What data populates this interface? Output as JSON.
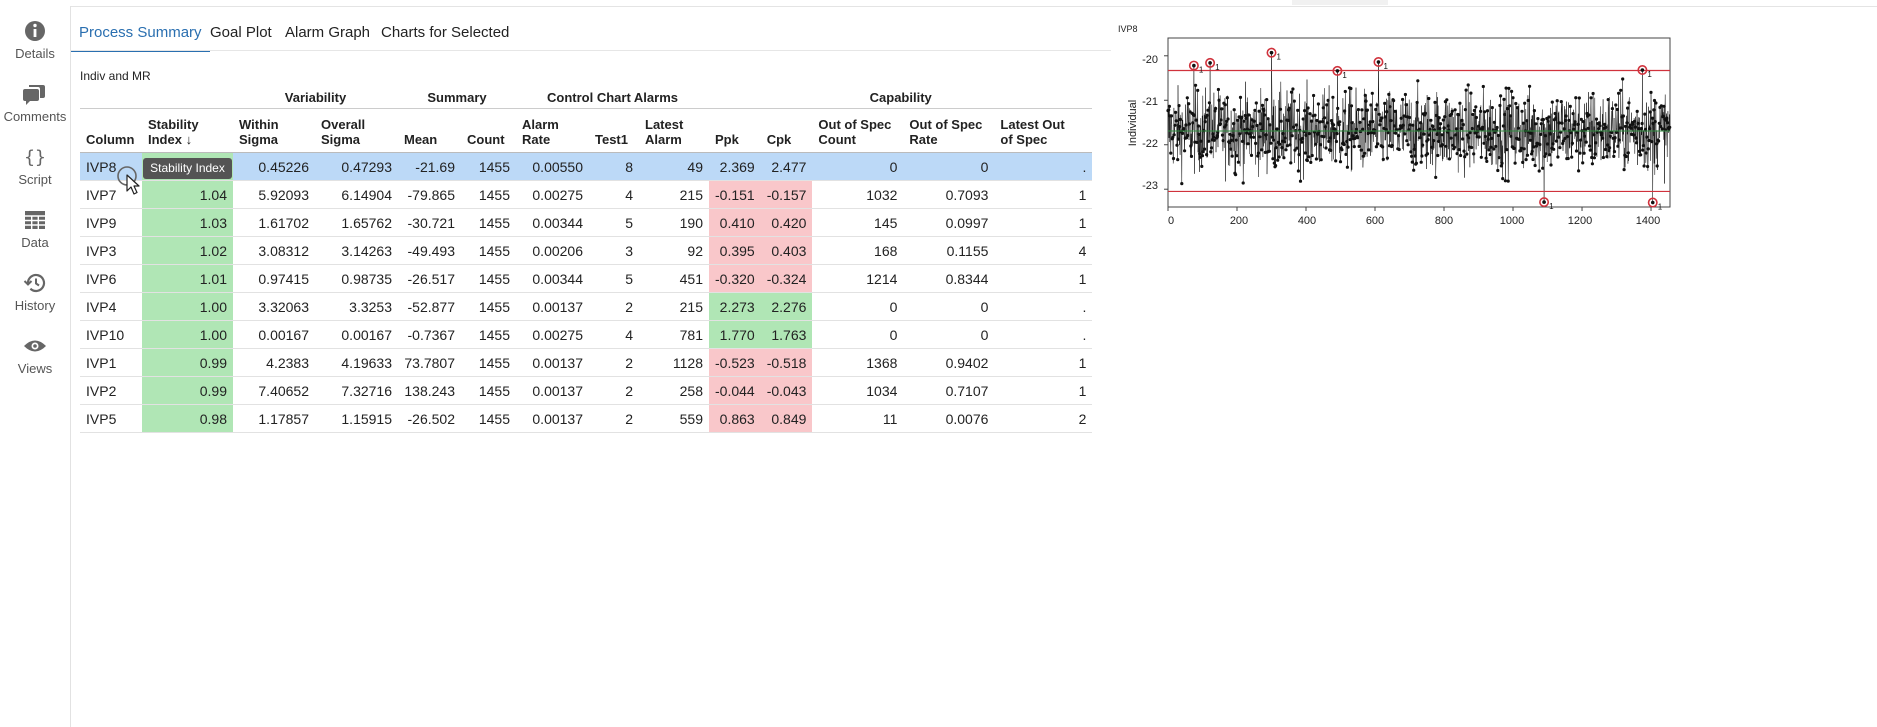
{
  "sidebar": {
    "items": [
      {
        "label": "Details",
        "icon": "info-icon"
      },
      {
        "label": "Comments",
        "icon": "comments-icon"
      },
      {
        "label": "Script",
        "icon": "braces-icon"
      },
      {
        "label": "Data",
        "icon": "table-icon"
      },
      {
        "label": "History",
        "icon": "history-icon"
      },
      {
        "label": "Views",
        "icon": "eye-icon"
      }
    ]
  },
  "tabs": [
    {
      "label": "Process Summary",
      "active": true
    },
    {
      "label": "Goal Plot",
      "active": false
    },
    {
      "label": "Alarm Graph",
      "active": false
    },
    {
      "label": "Charts for Selected",
      "active": false
    }
  ],
  "section_title": "Indiv and MR",
  "table": {
    "groups": {
      "variability": "Variability",
      "summary": "Summary",
      "alarms": "Control Chart Alarms",
      "capability": "Capability"
    },
    "headers": {
      "column": "Column",
      "stability_1": "Stability",
      "stability_2": "Index ↓",
      "within_1": "Within",
      "within_2": "Sigma",
      "overall_1": "Overall",
      "overall_2": "Sigma",
      "mean": "Mean",
      "count": "Count",
      "alarm_rate_1": "Alarm",
      "alarm_rate_2": "Rate",
      "test1": "Test1",
      "latest_alarm_1": "Latest",
      "latest_alarm_2": "Alarm",
      "ppk": "Ppk",
      "cpk": "Cpk",
      "oos_count_1": "Out of Spec",
      "oos_count_2": "Count",
      "oos_rate_1": "Out of Spec",
      "oos_rate_2": "Rate",
      "latest_oos_1": "Latest Out",
      "latest_oos_2": "of Spec"
    },
    "rows": [
      {
        "column": "IVP8",
        "stability": "",
        "within": "0.45226",
        "overall": "0.47293",
        "mean": "-21.69",
        "count": "1455",
        "alarm_rate": "0.00550",
        "test1": "8",
        "latest_alarm": "49",
        "ppk": "2.369",
        "cpk": "2.477",
        "oos_count": "0",
        "oos_rate": "0",
        "latest_oos": "."
      },
      {
        "column": "IVP7",
        "stability": "1.04",
        "within": "5.92093",
        "overall": "6.14904",
        "mean": "-79.865",
        "count": "1455",
        "alarm_rate": "0.00275",
        "test1": "4",
        "latest_alarm": "215",
        "ppk": "-0.151",
        "cpk": "-0.157",
        "oos_count": "1032",
        "oos_rate": "0.7093",
        "latest_oos": "1"
      },
      {
        "column": "IVP9",
        "stability": "1.03",
        "within": "1.61702",
        "overall": "1.65762",
        "mean": "-30.721",
        "count": "1455",
        "alarm_rate": "0.00344",
        "test1": "5",
        "latest_alarm": "190",
        "ppk": "0.410",
        "cpk": "0.420",
        "oos_count": "145",
        "oos_rate": "0.0997",
        "latest_oos": "1"
      },
      {
        "column": "IVP3",
        "stability": "1.02",
        "within": "3.08312",
        "overall": "3.14263",
        "mean": "-49.493",
        "count": "1455",
        "alarm_rate": "0.00206",
        "test1": "3",
        "latest_alarm": "92",
        "ppk": "0.395",
        "cpk": "0.403",
        "oos_count": "168",
        "oos_rate": "0.1155",
        "latest_oos": "4"
      },
      {
        "column": "IVP6",
        "stability": "1.01",
        "within": "0.97415",
        "overall": "0.98735",
        "mean": "-26.517",
        "count": "1455",
        "alarm_rate": "0.00344",
        "test1": "5",
        "latest_alarm": "451",
        "ppk": "-0.320",
        "cpk": "-0.324",
        "oos_count": "1214",
        "oos_rate": "0.8344",
        "latest_oos": "1"
      },
      {
        "column": "IVP4",
        "stability": "1.00",
        "within": "3.32063",
        "overall": "3.3253",
        "mean": "-52.877",
        "count": "1455",
        "alarm_rate": "0.00137",
        "test1": "2",
        "latest_alarm": "215",
        "ppk": "2.273",
        "cpk": "2.276",
        "oos_count": "0",
        "oos_rate": "0",
        "latest_oos": "."
      },
      {
        "column": "IVP10",
        "stability": "1.00",
        "within": "0.00167",
        "overall": "0.00167",
        "mean": "-0.7367",
        "count": "1455",
        "alarm_rate": "0.00275",
        "test1": "4",
        "latest_alarm": "781",
        "ppk": "1.770",
        "cpk": "1.763",
        "oos_count": "0",
        "oos_rate": "0",
        "latest_oos": "."
      },
      {
        "column": "IVP1",
        "stability": "0.99",
        "within": "4.2383",
        "overall": "4.19633",
        "mean": "73.7807",
        "count": "1455",
        "alarm_rate": "0.00137",
        "test1": "2",
        "latest_alarm": "1128",
        "ppk": "-0.523",
        "cpk": "-0.518",
        "oos_count": "1368",
        "oos_rate": "0.9402",
        "latest_oos": "1"
      },
      {
        "column": "IVP2",
        "stability": "0.99",
        "within": "7.40652",
        "overall": "7.32716",
        "mean": "138.243",
        "count": "1455",
        "alarm_rate": "0.00137",
        "test1": "2",
        "latest_alarm": "258",
        "ppk": "-0.044",
        "cpk": "-0.043",
        "oos_count": "1034",
        "oos_rate": "0.7107",
        "latest_oos": "1"
      },
      {
        "column": "IVP5",
        "stability": "0.98",
        "within": "1.17857",
        "overall": "1.15915",
        "mean": "-26.502",
        "count": "1455",
        "alarm_rate": "0.00137",
        "test1": "2",
        "latest_alarm": "559",
        "ppk": "0.863",
        "cpk": "0.849",
        "oos_count": "11",
        "oos_rate": "0.0076",
        "latest_oos": "2"
      }
    ]
  },
  "tooltip": "Stability Index",
  "colors": {
    "accent": "#2a6fb0",
    "selected_row": "#bcd9f7",
    "good": "#b0e6b5",
    "bad": "#f9c7ca",
    "limit_line": "#d0323c",
    "center_line": "#2e8b3e"
  },
  "chart": {
    "title": "IVP8",
    "ylabel": "Individual",
    "x_ticks": [
      "0",
      "200",
      "400",
      "600",
      "800",
      "1000",
      "1200",
      "1400"
    ],
    "y_ticks": [
      "-20",
      "-21",
      "-22",
      "-23"
    ],
    "alarm_flag": "1"
  },
  "chart_data": {
    "type": "line",
    "title": "IVP8",
    "ylabel": "Individual",
    "xlim": [
      0,
      1455
    ],
    "ylim": [
      -23.4,
      -19.6
    ],
    "ucl": -20.33,
    "lcl": -23.05,
    "center": -21.69,
    "n_points": 1455,
    "alarm_points": [
      {
        "x": 75,
        "y": -20.22
      },
      {
        "x": 122,
        "y": -20.16
      },
      {
        "x": 300,
        "y": -19.93
      },
      {
        "x": 491,
        "y": -20.34
      },
      {
        "x": 610,
        "y": -20.14
      },
      {
        "x": 1090,
        "y": -23.29
      },
      {
        "x": 1375,
        "y": -20.32
      },
      {
        "x": 1405,
        "y": -23.3
      }
    ]
  }
}
